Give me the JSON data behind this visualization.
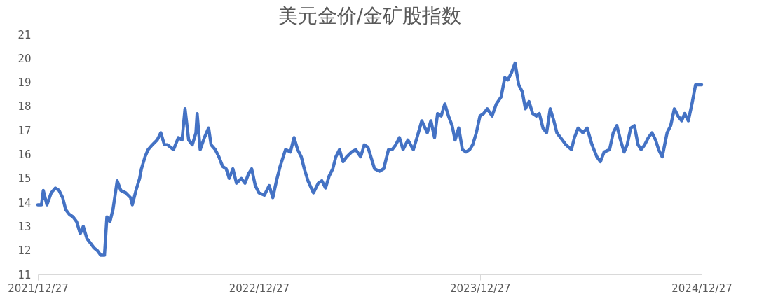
{
  "chart_data": {
    "type": "line",
    "title": "美元金价/金矿股指数",
    "x": [
      "2021-12-27",
      "2022-01-02",
      "2022-01-05",
      "2022-01-11",
      "2022-01-18",
      "2022-01-25",
      "2022-01-31",
      "2022-02-06",
      "2022-02-11",
      "2022-02-17",
      "2022-02-23",
      "2022-03-01",
      "2022-03-07",
      "2022-03-12",
      "2022-03-18",
      "2022-03-24",
      "2022-03-30",
      "2022-04-04",
      "2022-04-10",
      "2022-04-16",
      "2022-04-20",
      "2022-04-25",
      "2022-04-30",
      "2022-05-07",
      "2022-05-13",
      "2022-05-21",
      "2022-05-29",
      "2022-06-01",
      "2022-06-07",
      "2022-06-13",
      "2022-06-16",
      "2022-06-22",
      "2022-06-27",
      "2022-07-04",
      "2022-07-12",
      "2022-07-18",
      "2022-07-24",
      "2022-07-29",
      "2022-08-08",
      "2022-08-16",
      "2022-08-22",
      "2022-08-27",
      "2022-09-02",
      "2022-09-08",
      "2022-09-14",
      "2022-09-16",
      "2022-09-21",
      "2022-09-28",
      "2022-10-05",
      "2022-10-09",
      "2022-10-16",
      "2022-10-22",
      "2022-10-28",
      "2022-11-03",
      "2022-11-08",
      "2022-11-14",
      "2022-11-20",
      "2022-11-28",
      "2022-12-04",
      "2022-12-10",
      "2022-12-15",
      "2022-12-21",
      "2022-12-27",
      "2023-01-05",
      "2023-01-13",
      "2023-01-19",
      "2023-01-25",
      "2023-01-31",
      "2023-02-09",
      "2023-02-17",
      "2023-02-23",
      "2023-03-01",
      "2023-03-07",
      "2023-03-12",
      "2023-03-18",
      "2023-03-27",
      "2023-04-04",
      "2023-04-10",
      "2023-04-16",
      "2023-04-22",
      "2023-04-28",
      "2023-05-03",
      "2023-05-09",
      "2023-05-15",
      "2023-05-21",
      "2023-05-29",
      "2023-06-05",
      "2023-06-13",
      "2023-06-19",
      "2023-06-25",
      "2023-07-06",
      "2023-07-14",
      "2023-07-21",
      "2023-07-29",
      "2023-08-04",
      "2023-08-10",
      "2023-08-16",
      "2023-08-22",
      "2023-08-30",
      "2023-09-08",
      "2023-09-14",
      "2023-09-22",
      "2023-10-01",
      "2023-10-07",
      "2023-10-13",
      "2023-10-18",
      "2023-10-24",
      "2023-10-30",
      "2023-11-05",
      "2023-11-11",
      "2023-11-16",
      "2023-11-22",
      "2023-11-28",
      "2023-12-04",
      "2023-12-10",
      "2023-12-15",
      "2023-12-21",
      "2023-12-27",
      "2024-01-02",
      "2024-01-08",
      "2024-01-16",
      "2024-01-23",
      "2024-01-31",
      "2024-02-06",
      "2024-02-11",
      "2024-02-17",
      "2024-02-23",
      "2024-02-29",
      "2024-03-06",
      "2024-03-11",
      "2024-03-17",
      "2024-03-23",
      "2024-03-29",
      "2024-04-03",
      "2024-04-09",
      "2024-04-15",
      "2024-04-21",
      "2024-04-27",
      "2024-05-02",
      "2024-05-11",
      "2024-05-17",
      "2024-05-26",
      "2024-05-31",
      "2024-06-06",
      "2024-06-14",
      "2024-06-21",
      "2024-06-29",
      "2024-07-07",
      "2024-07-13",
      "2024-07-19",
      "2024-07-28",
      "2024-08-03",
      "2024-08-09",
      "2024-08-15",
      "2024-08-21",
      "2024-08-26",
      "2024-09-01",
      "2024-09-07",
      "2024-09-13",
      "2024-09-18",
      "2024-09-24",
      "2024-09-30",
      "2024-10-06",
      "2024-10-12",
      "2024-10-17",
      "2024-10-23",
      "2024-10-27",
      "2024-10-31",
      "2024-11-06",
      "2024-11-12",
      "2024-11-18",
      "2024-11-24",
      "2024-11-29",
      "2024-12-05",
      "2024-12-11",
      "2024-12-17",
      "2024-12-27"
    ],
    "series": [
      {
        "color": "#4472c4",
        "values": [
          13.9,
          13.9,
          14.5,
          13.9,
          14.4,
          14.6,
          14.5,
          14.2,
          13.7,
          13.5,
          13.4,
          13.2,
          12.7,
          13.0,
          12.5,
          12.3,
          12.1,
          12.0,
          11.8,
          11.8,
          13.4,
          13.2,
          13.7,
          14.9,
          14.5,
          14.4,
          14.2,
          13.9,
          14.5,
          15.0,
          15.4,
          15.9,
          16.2,
          16.4,
          16.6,
          16.9,
          16.4,
          16.4,
          16.2,
          16.7,
          16.6,
          17.9,
          16.6,
          16.4,
          16.9,
          17.7,
          16.2,
          16.7,
          17.1,
          16.4,
          16.2,
          15.9,
          15.5,
          15.4,
          15.0,
          15.4,
          14.8,
          15.0,
          14.8,
          15.2,
          15.4,
          14.7,
          14.4,
          14.3,
          14.7,
          14.2,
          14.9,
          15.5,
          16.2,
          16.1,
          16.7,
          16.2,
          15.9,
          15.4,
          14.9,
          14.4,
          14.8,
          14.9,
          14.6,
          15.1,
          15.4,
          15.9,
          16.2,
          15.7,
          15.9,
          16.1,
          16.2,
          15.9,
          16.4,
          16.3,
          15.4,
          15.3,
          15.4,
          16.2,
          16.2,
          16.4,
          16.7,
          16.2,
          16.6,
          16.2,
          16.7,
          17.4,
          16.9,
          17.4,
          16.7,
          17.7,
          17.6,
          18.1,
          17.6,
          17.2,
          16.6,
          17.1,
          16.2,
          16.1,
          16.2,
          16.4,
          16.9,
          17.6,
          17.7,
          17.9,
          17.6,
          18.1,
          18.4,
          19.2,
          19.1,
          19.4,
          19.8,
          18.9,
          18.6,
          17.9,
          18.2,
          17.7,
          17.6,
          17.7,
          17.1,
          16.9,
          17.9,
          17.4,
          16.9,
          16.6,
          16.4,
          16.2,
          16.7,
          17.1,
          16.9,
          17.1,
          16.4,
          15.9,
          15.7,
          16.1,
          16.2,
          16.9,
          17.2,
          16.6,
          16.1,
          16.4,
          17.1,
          17.2,
          16.4,
          16.2,
          16.4,
          16.7,
          16.9,
          16.6,
          16.2,
          15.9,
          16.4,
          16.9,
          17.2,
          17.9,
          17.6,
          17.4,
          17.7,
          17.4,
          18.1,
          18.9,
          18.9
        ]
      }
    ],
    "xlim": [
      "2021-12-27",
      "2024-12-27"
    ],
    "xticks": [
      {
        "value": "2021-12-27",
        "label": "2021/12/27"
      },
      {
        "value": "2022-12-27",
        "label": "2022/12/27"
      },
      {
        "value": "2023-12-27",
        "label": "2023/12/27"
      },
      {
        "value": "2024-12-27",
        "label": "2024/12/27"
      }
    ],
    "ylim": [
      11,
      21
    ],
    "yticks": [
      11,
      12,
      13,
      14,
      15,
      16,
      17,
      18,
      19,
      20,
      21
    ],
    "grid": false,
    "legend": false,
    "marker": "none",
    "line_style": "solid"
  }
}
